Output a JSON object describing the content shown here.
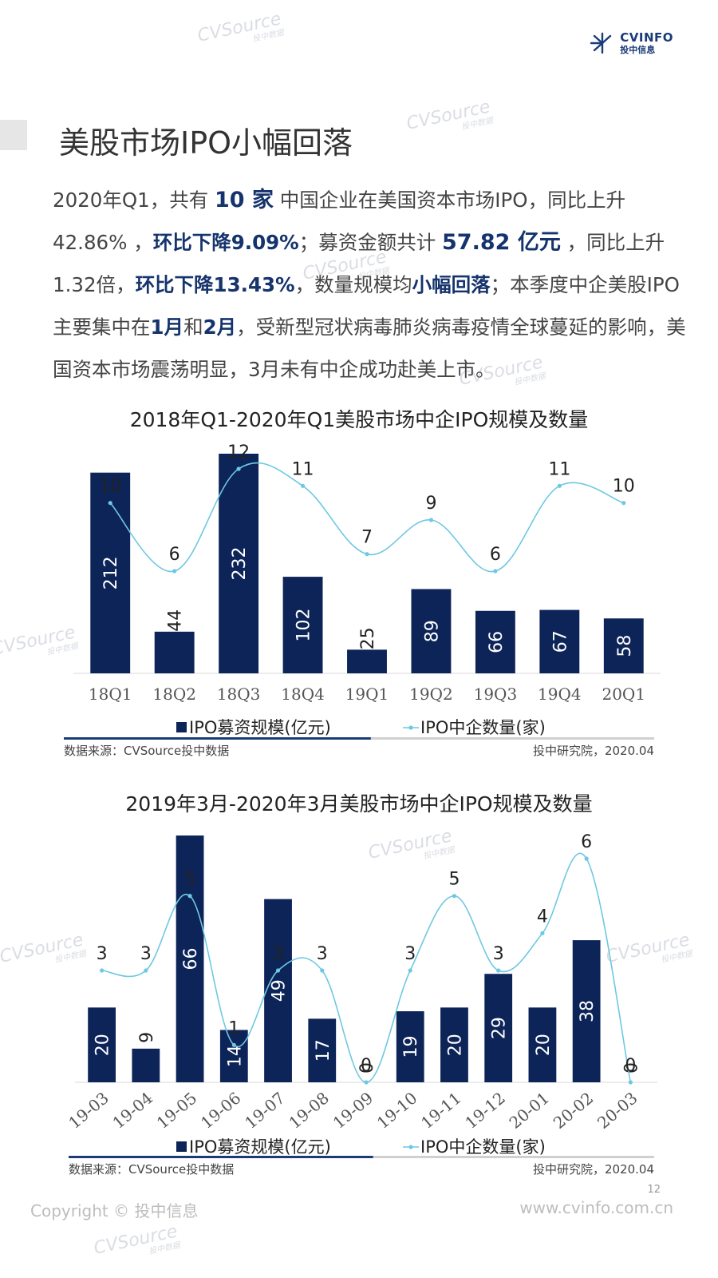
{
  "logo": {
    "en": "CVINFO",
    "cn": "投中信息"
  },
  "page_title": "美股市场IPO小幅回落",
  "intro": {
    "p1": "2020年Q1，共有 ",
    "count": "10 家",
    "p2": " 中国企业在美国资本市场IPO，同比上升42.86% ，",
    "count_qoq": "环比下降9.09%",
    "p3": "；募资金额共计 ",
    "amount": "57.82 亿元",
    "p4": " ，同比上升1.32倍，",
    "amount_qoq": "环比下降13.43%",
    "p5": "，数量规模均",
    "trend": "小幅回落",
    "p6": "；本季度中企美股IPO主要集中在",
    "m1": "1月",
    "p7": "和",
    "m2": "2月",
    "p8": "，受新型冠状病毒肺炎病毒疫情全球蔓延的影响，美国资本市场震荡明显，3月未有中企成功赴美上市。"
  },
  "watermark": {
    "text": "CVSource",
    "sub": "投中数据"
  },
  "colors": {
    "bar": "#0d2458",
    "line": "#6ec8e2",
    "accent": "#15336c",
    "rule_dark": "#1a3b78",
    "rule_light": "#d0d0d0"
  },
  "chart_data": [
    {
      "type": "bar",
      "title": "2018年Q1-2020年Q1美股市场中企IPO规模及数量",
      "categories": [
        "18Q1",
        "18Q2",
        "18Q3",
        "18Q4",
        "19Q1",
        "19Q2",
        "19Q3",
        "19Q4",
        "20Q1"
      ],
      "series": [
        {
          "name": "IPO募资规模(亿元)",
          "type": "bar",
          "values": [
            212,
            44,
            232,
            102,
            25,
            89,
            66,
            67,
            58
          ]
        },
        {
          "name": "IPO中企数量(家)",
          "type": "line",
          "smooth": true,
          "values": [
            10,
            6,
            12,
            11,
            7,
            9,
            6,
            11,
            10
          ]
        }
      ],
      "legend": "bottom-center",
      "source": "数据来源：CVSource投中数据",
      "credit": "投中研究院，2020.04"
    },
    {
      "type": "bar",
      "title": "2019年3月-2020年3月美股市场中企IPO规模及数量",
      "categories": [
        "19-03",
        "19-04",
        "19-05",
        "19-06",
        "19-07",
        "19-08",
        "19-09",
        "19-10",
        "19-11",
        "19-12",
        "20-01",
        "20-02",
        "20-03"
      ],
      "series": [
        {
          "name": "IPO募资规模(亿元)",
          "type": "bar",
          "values": [
            20,
            9,
            66,
            14,
            49,
            17,
            0,
            19,
            20,
            29,
            20,
            38,
            0
          ]
        },
        {
          "name": "IPO中企数量(家)",
          "type": "line",
          "smooth": true,
          "values": [
            3,
            3,
            5,
            1,
            3,
            3,
            0,
            3,
            5,
            3,
            4,
            6,
            0
          ]
        }
      ],
      "legend": "bottom-center",
      "source": "数据来源：CVSource投中数据",
      "credit": "投中研究院，2020.04"
    }
  ],
  "footer": {
    "copyright": "Copyright © 投中信息",
    "url": "www.cvinfo.com.cn",
    "page": "12"
  }
}
